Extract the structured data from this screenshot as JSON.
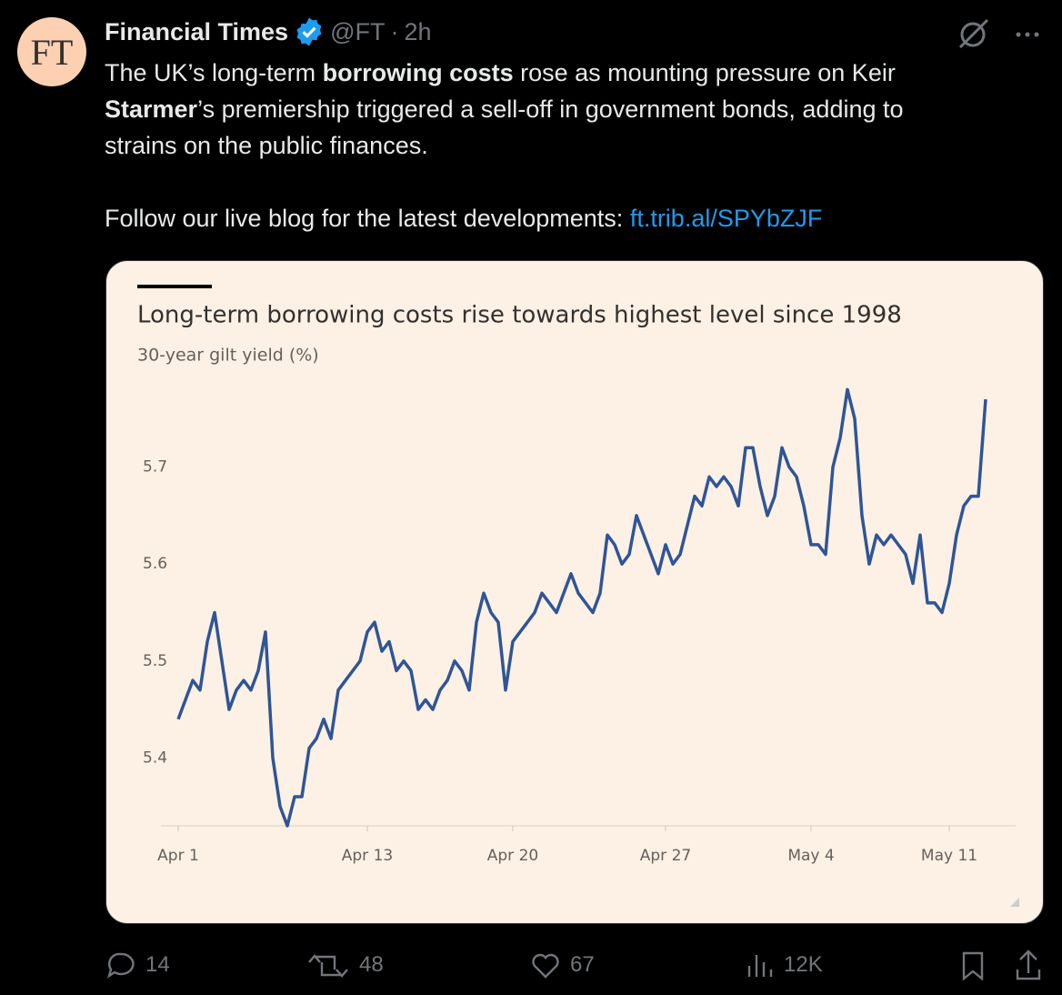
{
  "tweet": {
    "avatar": "FT",
    "name": "Financial Times",
    "handle": "@FT",
    "time": "2h",
    "text": {
      "lines": [
        [
          {
            "text": "The UK’s long-term "
          },
          {
            "text": "borrowing costs",
            "bold": true
          },
          {
            "text": " rose as mounting pressure on Keir"
          }
        ],
        [
          {
            "text": "Starmer",
            "bold": true
          },
          {
            "text": "’s premiership triggered a sell-off in government bonds, adding to"
          }
        ],
        [
          {
            "text": "strains on the public finances."
          }
        ]
      ],
      "follow": "Follow our live blog for the latest developments: ",
      "link": "ft.trib.al/SPYbZJF"
    },
    "stats": {
      "replies": "14",
      "reposts": "48",
      "likes": "67",
      "views": "12K"
    }
  },
  "chart_data": {
    "type": "line",
    "title": "Long-term borrowing costs rise towards highest level since 1998",
    "subtitle": "30-year gilt yield (%)",
    "categories": [
      "Apr 1",
      null,
      null,
      null,
      null,
      null,
      null,
      null,
      null,
      null,
      null,
      null,
      null,
      null,
      null,
      null,
      null,
      null,
      null,
      null,
      null,
      null,
      null,
      null,
      null,
      null,
      "Apr 13",
      null,
      null,
      null,
      null,
      null,
      null,
      null,
      null,
      null,
      null,
      null,
      null,
      null,
      null,
      null,
      null,
      null,
      null,
      null,
      "Apr 20",
      null,
      null,
      null,
      null,
      null,
      null,
      null,
      null,
      null,
      null,
      null,
      null,
      null,
      null,
      null,
      null,
      null,
      null,
      null,
      null,
      "Apr 27",
      null,
      null,
      null,
      null,
      null,
      null,
      null,
      null,
      null,
      null,
      null,
      null,
      null,
      null,
      null,
      null,
      null,
      null,
      null,
      "May 4",
      null,
      null,
      null,
      null,
      null,
      null,
      null,
      null,
      null,
      null,
      null,
      null,
      null,
      null,
      null,
      null,
      null,
      null,
      "May 11",
      null,
      null,
      null,
      null,
      null
    ],
    "series": [
      {
        "name": "30-year gilt yield",
        "color": "#2f5597",
        "values": [
          5.44,
          5.46,
          5.48,
          5.47,
          5.52,
          5.55,
          5.5,
          5.45,
          5.47,
          5.48,
          5.47,
          5.49,
          5.53,
          5.4,
          5.35,
          5.33,
          5.36,
          5.36,
          5.41,
          5.42,
          5.44,
          5.42,
          5.47,
          5.48,
          5.49,
          5.5,
          5.53,
          5.54,
          5.51,
          5.52,
          5.49,
          5.5,
          5.49,
          5.45,
          5.46,
          5.45,
          5.47,
          5.48,
          5.5,
          5.49,
          5.47,
          5.54,
          5.57,
          5.55,
          5.54,
          5.47,
          5.52,
          5.53,
          5.54,
          5.55,
          5.57,
          5.56,
          5.55,
          5.57,
          5.59,
          5.57,
          5.56,
          5.55,
          5.57,
          5.63,
          5.62,
          5.6,
          5.61,
          5.65,
          5.63,
          5.61,
          5.59,
          5.62,
          5.6,
          5.61,
          5.64,
          5.67,
          5.66,
          5.69,
          5.68,
          5.69,
          5.68,
          5.66,
          5.72,
          5.72,
          5.68,
          5.65,
          5.67,
          5.72,
          5.7,
          5.69,
          5.66,
          5.62,
          5.62,
          5.61,
          5.7,
          5.73,
          5.78,
          5.75,
          5.65,
          5.6,
          5.63,
          5.62,
          5.63,
          5.62,
          5.61,
          5.58,
          5.63,
          5.56,
          5.56,
          5.55,
          5.58,
          5.63,
          5.66,
          5.67,
          5.67,
          5.77
        ]
      }
    ],
    "ylim": [
      5.33,
      5.8
    ],
    "yticks": [
      5.4,
      5.5,
      5.6,
      5.7
    ],
    "grid": false
  }
}
